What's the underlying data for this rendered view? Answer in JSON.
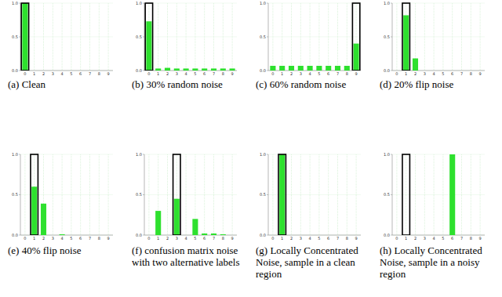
{
  "chart_data": [
    {
      "type": "bar",
      "title": "(a) Clean",
      "categories": [
        "0",
        "1",
        "2",
        "3",
        "4",
        "5",
        "6",
        "7",
        "8",
        "9"
      ],
      "ylim": [
        0,
        1
      ],
      "yticks": [
        {
          "value": 0,
          "label": "0.0"
        },
        {
          "value": 0.5,
          "label": "0.5"
        },
        {
          "value": 1,
          "label": "1.0"
        }
      ],
      "grid": true,
      "series": [
        {
          "values": [
            1.0,
            0,
            0,
            0,
            0,
            0,
            0,
            0,
            0,
            0
          ],
          "color": "#2ee02e"
        },
        {
          "type": "outline",
          "values": [
            1.0,
            null,
            null,
            null,
            null,
            null,
            null,
            null,
            null,
            null
          ],
          "color": "#000000"
        }
      ]
    },
    {
      "type": "bar",
      "title": "(b) 30% random noise",
      "categories": [
        "0",
        "1",
        "2",
        "3",
        "4",
        "5",
        "6",
        "7",
        "8",
        "9"
      ],
      "ylim": [
        0,
        1
      ],
      "yticks": [
        {
          "value": 0,
          "label": "0.0"
        },
        {
          "value": 0.5,
          "label": "0.5"
        },
        {
          "value": 1,
          "label": "1.0"
        }
      ],
      "grid": true,
      "series": [
        {
          "values": [
            0.73,
            0.03,
            0.04,
            0.03,
            0.03,
            0.03,
            0.03,
            0.03,
            0.03,
            0.03
          ],
          "color": "#2ee02e"
        },
        {
          "type": "outline",
          "values": [
            1.0,
            null,
            null,
            null,
            null,
            null,
            null,
            null,
            null,
            null
          ],
          "color": "#000000"
        }
      ]
    },
    {
      "type": "bar",
      "title": "(c) 60% random noise",
      "categories": [
        "0",
        "1",
        "2",
        "3",
        "4",
        "5",
        "6",
        "7",
        "8",
        "9"
      ],
      "ylim": [
        0,
        1
      ],
      "yticks": [
        {
          "value": 0,
          "label": "0.0"
        },
        {
          "value": 0.5,
          "label": "0.5"
        },
        {
          "value": 1,
          "label": "1.0"
        }
      ],
      "grid": true,
      "series": [
        {
          "values": [
            0.07,
            0.07,
            0.07,
            0.07,
            0.07,
            0.07,
            0.07,
            0.07,
            0.07,
            0.4
          ],
          "color": "#2ee02e"
        },
        {
          "type": "outline",
          "values": [
            null,
            null,
            null,
            null,
            null,
            null,
            null,
            null,
            null,
            1.0
          ],
          "color": "#000000"
        }
      ]
    },
    {
      "type": "bar",
      "title": "(d) 20% flip noise",
      "categories": [
        "0",
        "1",
        "2",
        "3",
        "4",
        "5",
        "6",
        "7",
        "8",
        "9"
      ],
      "ylim": [
        0,
        1
      ],
      "yticks": [
        {
          "value": 0,
          "label": "0.0"
        },
        {
          "value": 0.5,
          "label": "0.5"
        },
        {
          "value": 1,
          "label": "1.0"
        }
      ],
      "grid": true,
      "series": [
        {
          "values": [
            0,
            0.82,
            0.18,
            0,
            0,
            0,
            0,
            0,
            0,
            0
          ],
          "color": "#2ee02e"
        },
        {
          "type": "outline",
          "values": [
            null,
            1.0,
            null,
            null,
            null,
            null,
            null,
            null,
            null,
            null
          ],
          "color": "#000000"
        }
      ]
    },
    {
      "type": "bar",
      "title": "(e) 40% flip noise",
      "categories": [
        "0",
        "1",
        "2",
        "3",
        "4",
        "5",
        "6",
        "7",
        "8",
        "9"
      ],
      "ylim": [
        0,
        1
      ],
      "yticks": [
        {
          "value": 0,
          "label": "0.0"
        },
        {
          "value": 0.5,
          "label": "0.5"
        },
        {
          "value": 1,
          "label": "1.0"
        }
      ],
      "grid": true,
      "series": [
        {
          "values": [
            0,
            0.6,
            0.39,
            0,
            0.01,
            0,
            0,
            0,
            0,
            0
          ],
          "color": "#2ee02e"
        },
        {
          "type": "outline",
          "values": [
            null,
            1.0,
            null,
            null,
            null,
            null,
            null,
            null,
            null,
            null
          ],
          "color": "#000000"
        }
      ]
    },
    {
      "type": "bar",
      "title": "(f) confusion matrix noise with two alternative labels",
      "categories": [
        "0",
        "1",
        "2",
        "3",
        "4",
        "5",
        "6",
        "7",
        "8",
        "9"
      ],
      "ylim": [
        0,
        1
      ],
      "yticks": [
        {
          "value": 0,
          "label": "0.0"
        },
        {
          "value": 0.5,
          "label": "0.5"
        },
        {
          "value": 1,
          "label": "1.0"
        }
      ],
      "grid": true,
      "series": [
        {
          "values": [
            0,
            0.3,
            0,
            0.45,
            0,
            0.2,
            0.02,
            0.02,
            0.01,
            0
          ],
          "color": "#2ee02e"
        },
        {
          "type": "outline",
          "values": [
            null,
            null,
            null,
            1.0,
            null,
            null,
            null,
            null,
            null,
            null
          ],
          "color": "#000000"
        }
      ]
    },
    {
      "type": "bar",
      "title": "(g) Locally Concentrated Noise, sample in a clean region",
      "categories": [
        "0",
        "1",
        "2",
        "3",
        "4",
        "5",
        "6",
        "7",
        "8",
        "9"
      ],
      "ylim": [
        0,
        1
      ],
      "yticks": [
        {
          "value": 0,
          "label": "0.0"
        },
        {
          "value": 0.5,
          "label": "0.5"
        },
        {
          "value": 1,
          "label": "1.0"
        }
      ],
      "grid": true,
      "series": [
        {
          "values": [
            0,
            1.0,
            0,
            0,
            0,
            0,
            0,
            0,
            0,
            0
          ],
          "color": "#2ee02e"
        },
        {
          "type": "outline",
          "values": [
            null,
            1.0,
            null,
            null,
            null,
            null,
            null,
            null,
            null,
            null
          ],
          "color": "#000000"
        }
      ]
    },
    {
      "type": "bar",
      "title": "(h) Locally Concentrated Noise, sample in a noisy region",
      "categories": [
        "0",
        "1",
        "2",
        "3",
        "4",
        "5",
        "6",
        "7",
        "8",
        "9"
      ],
      "ylim": [
        0,
        1
      ],
      "yticks": [
        {
          "value": 0,
          "label": "0.0"
        },
        {
          "value": 0.5,
          "label": "0.5"
        },
        {
          "value": 1,
          "label": "1.0"
        }
      ],
      "grid": true,
      "series": [
        {
          "values": [
            0,
            0,
            0,
            0,
            0,
            0,
            1.0,
            0,
            0,
            0
          ],
          "color": "#2ee02e"
        },
        {
          "type": "outline",
          "values": [
            null,
            1.0,
            null,
            null,
            null,
            null,
            null,
            null,
            null,
            null
          ],
          "color": "#000000"
        }
      ]
    }
  ]
}
